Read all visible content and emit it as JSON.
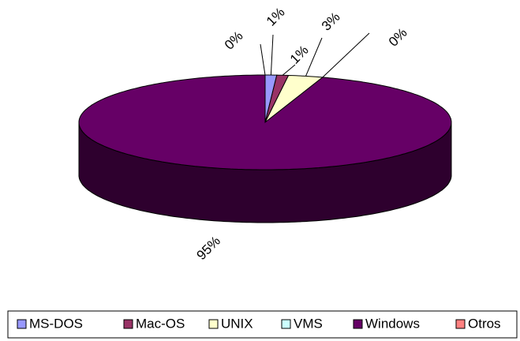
{
  "chart_data": {
    "type": "pie3d",
    "categories": [
      "MS-DOS",
      "Mac-OS",
      "UNIX",
      "VMS",
      "Windows",
      "Otros"
    ],
    "values": [
      1,
      1,
      3,
      0,
      95,
      0
    ],
    "value_labels": [
      "1%",
      "1%",
      "3%",
      "0%",
      "95%",
      "0%"
    ],
    "colors": [
      "#9999ff",
      "#993366",
      "#ffffcc",
      "#ccffff",
      "#660066",
      "#ff8080"
    ],
    "legend": "bottom"
  }
}
